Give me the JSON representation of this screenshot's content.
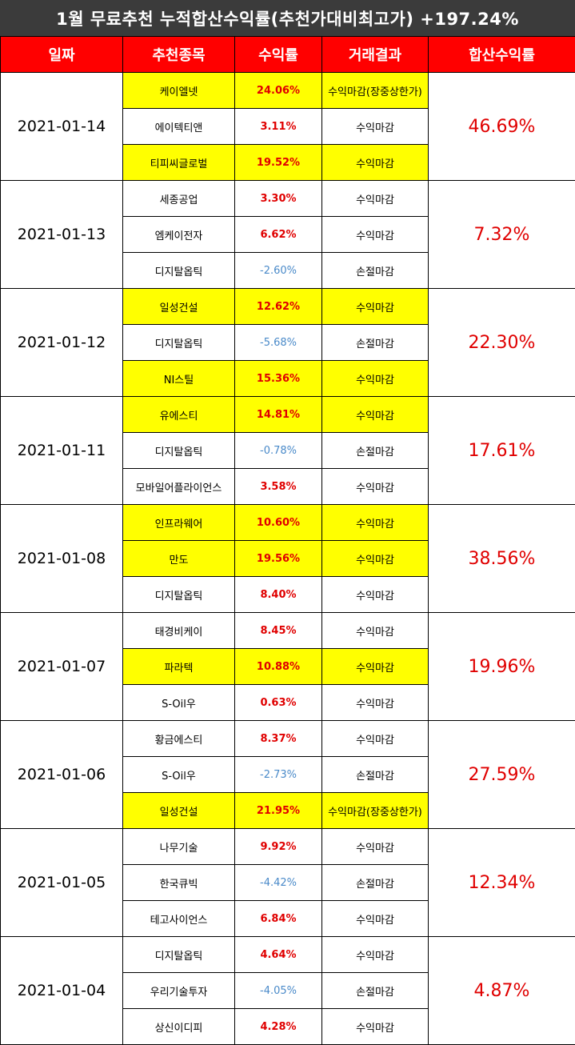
{
  "title": "1월 무료추천 누적합산수익률(추천가대비최고가) +197.24%",
  "columns": [
    "일짜",
    "추천종목",
    "수익률",
    "거래결과",
    "합산수익률"
  ],
  "colors": {
    "header_bg": "#ff0000",
    "highlight": "#ffff00",
    "positive": "#e00000",
    "negative": "#4a8ac9"
  },
  "groups": [
    {
      "date": "2021-01-14",
      "total": "46.69%",
      "rows": [
        {
          "stock": "케이엘넷",
          "ret": "24.06%",
          "result": "수익마감(장중상한가)",
          "hl": true,
          "neg": false,
          "redResult": true
        },
        {
          "stock": "에이텍티앤",
          "ret": "3.11%",
          "result": "수익마감",
          "hl": false,
          "neg": false,
          "redResult": false
        },
        {
          "stock": "티피씨글로벌",
          "ret": "19.52%",
          "result": "수익마감",
          "hl": true,
          "neg": false,
          "redResult": false
        }
      ]
    },
    {
      "date": "2021-01-13",
      "total": "7.32%",
      "rows": [
        {
          "stock": "세종공업",
          "ret": "3.30%",
          "result": "수익마감",
          "hl": false,
          "neg": false,
          "redResult": false
        },
        {
          "stock": "엠케이전자",
          "ret": "6.62%",
          "result": "수익마감",
          "hl": false,
          "neg": false,
          "redResult": false
        },
        {
          "stock": "디지탈옵틱",
          "ret": "-2.60%",
          "result": "손절마감",
          "hl": false,
          "neg": true,
          "redResult": false
        }
      ]
    },
    {
      "date": "2021-01-12",
      "total": "22.30%",
      "rows": [
        {
          "stock": "일성건설",
          "ret": "12.62%",
          "result": "수익마감",
          "hl": true,
          "neg": false,
          "redResult": false
        },
        {
          "stock": "디지탈옵틱",
          "ret": "-5.68%",
          "result": "손절마감",
          "hl": false,
          "neg": true,
          "redResult": false
        },
        {
          "stock": "NI스틸",
          "ret": "15.36%",
          "result": "수익마감",
          "hl": true,
          "neg": false,
          "redResult": false
        }
      ]
    },
    {
      "date": "2021-01-11",
      "total": "17.61%",
      "rows": [
        {
          "stock": "유에스티",
          "ret": "14.81%",
          "result": "수익마감",
          "hl": true,
          "neg": false,
          "redResult": false
        },
        {
          "stock": "디지탈옵틱",
          "ret": "-0.78%",
          "result": "손절마감",
          "hl": false,
          "neg": true,
          "redResult": false
        },
        {
          "stock": "모바일어플라이언스",
          "ret": "3.58%",
          "result": "수익마감",
          "hl": false,
          "neg": false,
          "redResult": false
        }
      ]
    },
    {
      "date": "2021-01-08",
      "total": "38.56%",
      "rows": [
        {
          "stock": "인프라웨어",
          "ret": "10.60%",
          "result": "수익마감",
          "hl": true,
          "neg": false,
          "redResult": false
        },
        {
          "stock": "만도",
          "ret": "19.56%",
          "result": "수익마감",
          "hl": true,
          "neg": false,
          "redResult": false
        },
        {
          "stock": "디지탈옵틱",
          "ret": "8.40%",
          "result": "수익마감",
          "hl": false,
          "neg": false,
          "redResult": false
        }
      ]
    },
    {
      "date": "2021-01-07",
      "total": "19.96%",
      "rows": [
        {
          "stock": "태경비케이",
          "ret": "8.45%",
          "result": "수익마감",
          "hl": false,
          "neg": false,
          "redResult": false
        },
        {
          "stock": "파라텍",
          "ret": "10.88%",
          "result": "수익마감",
          "hl": true,
          "neg": false,
          "redResult": false
        },
        {
          "stock": "S-Oil우",
          "ret": "0.63%",
          "result": "수익마감",
          "hl": false,
          "neg": false,
          "redResult": false
        }
      ]
    },
    {
      "date": "2021-01-06",
      "total": "27.59%",
      "rows": [
        {
          "stock": "황금에스티",
          "ret": "8.37%",
          "result": "수익마감",
          "hl": false,
          "neg": false,
          "redResult": false
        },
        {
          "stock": "S-Oil우",
          "ret": "-2.73%",
          "result": "손절마감",
          "hl": false,
          "neg": true,
          "redResult": false
        },
        {
          "stock": "일성건설",
          "ret": "21.95%",
          "result": "수익마감(장중상한가)",
          "hl": true,
          "neg": false,
          "redResult": true
        }
      ]
    },
    {
      "date": "2021-01-05",
      "total": "12.34%",
      "rows": [
        {
          "stock": "나무기술",
          "ret": "9.92%",
          "result": "수익마감",
          "hl": false,
          "neg": false,
          "redResult": false
        },
        {
          "stock": "한국큐빅",
          "ret": "-4.42%",
          "result": "손절마감",
          "hl": false,
          "neg": true,
          "redResult": false
        },
        {
          "stock": "테고사이언스",
          "ret": "6.84%",
          "result": "수익마감",
          "hl": false,
          "neg": false,
          "redResult": false
        }
      ]
    },
    {
      "date": "2021-01-04",
      "total": "4.87%",
      "rows": [
        {
          "stock": "디지탈옵틱",
          "ret": "4.64%",
          "result": "수익마감",
          "hl": false,
          "neg": false,
          "redResult": false
        },
        {
          "stock": "우리기술투자",
          "ret": "-4.05%",
          "result": "손절마감",
          "hl": false,
          "neg": true,
          "redResult": false
        },
        {
          "stock": "상신이디피",
          "ret": "4.28%",
          "result": "수익마감",
          "hl": false,
          "neg": false,
          "redResult": false
        }
      ]
    }
  ]
}
